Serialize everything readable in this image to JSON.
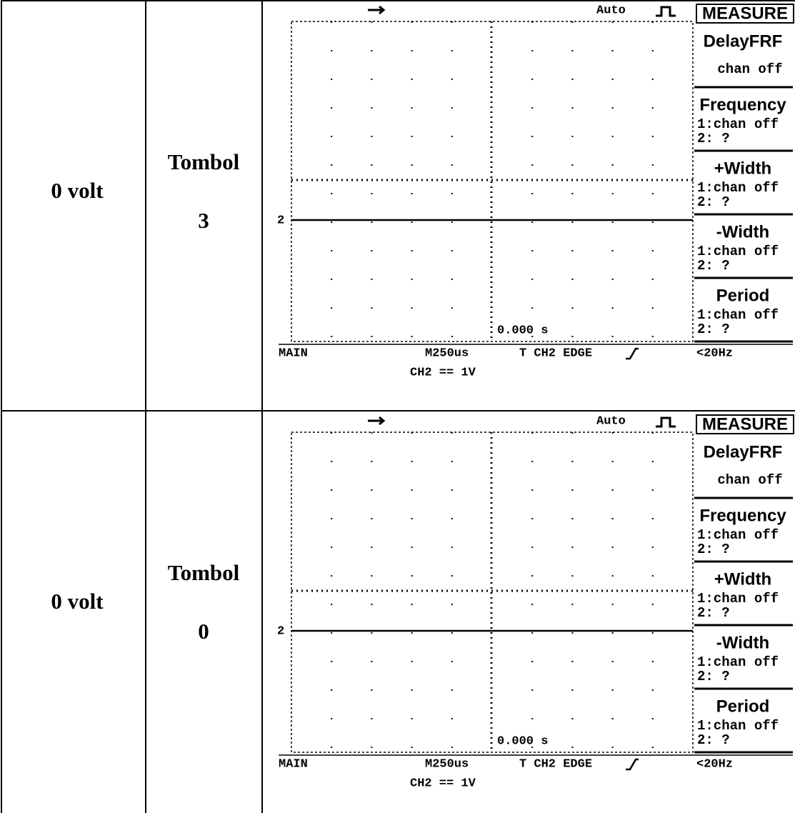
{
  "rows": [
    {
      "voltage": "0 volt",
      "button_label": "Tombol",
      "button_number": "3",
      "scope": {
        "mode": "Auto",
        "marker": "2",
        "trigger_time": "0.000 s",
        "menu_title": "MEASURE",
        "menu": [
          {
            "title": "DelayFRF",
            "lines": [
              "chan off"
            ]
          },
          {
            "title": "Frequency",
            "lines": [
              "1:chan off",
              "2:  ?"
            ]
          },
          {
            "title": "+Width",
            "lines": [
              "1:chan off",
              "2:  ?"
            ]
          },
          {
            "title": "-Width",
            "lines": [
              "1:chan off",
              "2:  ?"
            ]
          },
          {
            "title": "Period",
            "lines": [
              "1:chan off",
              "2:  ?"
            ]
          }
        ],
        "footer_left": "MAIN",
        "timebase": "M250us",
        "trigger": "T CH2 EDGE",
        "menu_footer": "<20Hz",
        "channel": "CH2 == 1V"
      }
    },
    {
      "voltage": "0 volt",
      "button_label": "Tombol",
      "button_number": "0",
      "scope": {
        "mode": "Auto",
        "marker": "2",
        "trigger_time": "0.000 s",
        "menu_title": "MEASURE",
        "menu": [
          {
            "title": "DelayFRF",
            "lines": [
              "chan off"
            ]
          },
          {
            "title": "Frequency",
            "lines": [
              "1:chan off",
              "2:  ?"
            ]
          },
          {
            "title": "+Width",
            "lines": [
              "1:chan off",
              "2:  ?"
            ]
          },
          {
            "title": "-Width",
            "lines": [
              "1:chan off",
              "2:  ?"
            ]
          },
          {
            "title": "Period",
            "lines": [
              "1:chan off",
              "2:  ?"
            ]
          }
        ],
        "footer_left": "MAIN",
        "timebase": "M250us",
        "trigger": "T CH2 EDGE",
        "menu_footer": "<20Hz",
        "channel": "CH2 == 1V"
      }
    }
  ]
}
